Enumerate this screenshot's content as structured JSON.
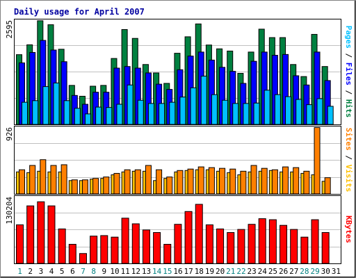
{
  "chart_data": {
    "type": "bar",
    "title": "Daily usage for April 2007",
    "categories": [
      "1",
      "2",
      "3",
      "4",
      "5",
      "6",
      "7",
      "8",
      "9",
      "10",
      "11",
      "12",
      "13",
      "14",
      "15",
      "16",
      "17",
      "18",
      "19",
      "20",
      "21",
      "22",
      "23",
      "24",
      "25",
      "26",
      "27",
      "28",
      "29",
      "30",
      "31"
    ],
    "weekend_days": [
      "1",
      "7",
      "8",
      "14",
      "15",
      "21",
      "22",
      "28",
      "29"
    ],
    "panels": [
      {
        "name": "hits-files-pages",
        "ymax_label": "2595",
        "ylim": [
          0,
          2595
        ],
        "axis_label_parts": [
          {
            "text": "Pages",
            "color": "#00c0ff"
          },
          {
            "text": " / ",
            "color": "#000000"
          },
          {
            "text": "Files",
            "color": "#0000ff"
          },
          {
            "text": " / ",
            "color": "#000000"
          },
          {
            "text": "Hits",
            "color": "#008040"
          }
        ],
        "series": [
          {
            "name": "Hits",
            "color": "#008040",
            "values": [
              1745,
              1990,
              2590,
              2490,
              1880,
              980,
              710,
              960,
              980,
              1650,
              2370,
              2150,
              1500,
              1290,
              1030,
              1780,
              2190,
              2510,
              1985,
              1890,
              1835,
              1280,
              1810,
              2380,
              2170,
              2170,
              1500,
              1200,
              2250,
              1450,
              0
            ]
          },
          {
            "name": "Files",
            "color": "#0000ff",
            "values": [
              1540,
              1800,
              2100,
              1860,
              1570,
              730,
              510,
              810,
              810,
              1410,
              1450,
              1410,
              1290,
              1010,
              880,
              1370,
              1710,
              1810,
              1610,
              1430,
              1330,
              1030,
              1580,
              1810,
              1730,
              1750,
              1220,
              990,
              1810,
              1100,
              0
            ]
          },
          {
            "name": "Pages",
            "color": "#00c0ff",
            "values": [
              560,
              600,
              950,
              1040,
              600,
              410,
              270,
              440,
              430,
              510,
              990,
              610,
              530,
              530,
              560,
              690,
              920,
              1210,
              750,
              610,
              530,
              530,
              540,
              860,
              750,
              700,
              630,
              500,
              650,
              460,
              0
            ]
          }
        ]
      },
      {
        "name": "visits-sites",
        "ymax_label": "926",
        "ylim": [
          0,
          926
        ],
        "axis_label_parts": [
          {
            "text": "Sites",
            "color": "#ff8000"
          },
          {
            "text": " / ",
            "color": "#000000"
          },
          {
            "text": "Visits",
            "color": "#ffc000"
          }
        ],
        "series": [
          {
            "name": "Visits",
            "color": "#ffc000",
            "values": [
              310,
              300,
              320,
              310,
              310,
              190,
              190,
              210,
              220,
              270,
              310,
              320,
              320,
              190,
              220,
              310,
              330,
              340,
              340,
              320,
              300,
              270,
              310,
              320,
              330,
              310,
              310,
              290,
              270,
              180,
              0
            ]
          },
          {
            "name": "Sites",
            "color": "#ff8000",
            "values": [
              340,
              400,
              480,
              400,
              410,
              200,
              200,
              220,
              240,
              290,
              340,
              340,
              400,
              340,
              240,
              330,
              350,
              380,
              370,
              360,
              350,
              320,
              400,
              360,
              340,
              380,
              370,
              320,
              926,
              230,
              0
            ]
          }
        ]
      },
      {
        "name": "kbytes",
        "ymax_label": "130204",
        "ylim": [
          0,
          130204
        ],
        "axis_label_parts": [
          {
            "text": "KBytes",
            "color": "#ff0000"
          }
        ],
        "series": [
          {
            "name": "KBytes",
            "color": "#ff0000",
            "values": [
              76000,
              113000,
              121000,
              113000,
              68000,
              38000,
              20000,
              54000,
              55000,
              52000,
              89000,
              78000,
              66000,
              61000,
              38000,
              77000,
              102000,
              116000,
              76000,
              68000,
              61000,
              67000,
              77000,
              88000,
              86000,
              75000,
              67000,
              52000,
              86000,
              61000,
              0
            ]
          }
        ]
      }
    ]
  }
}
